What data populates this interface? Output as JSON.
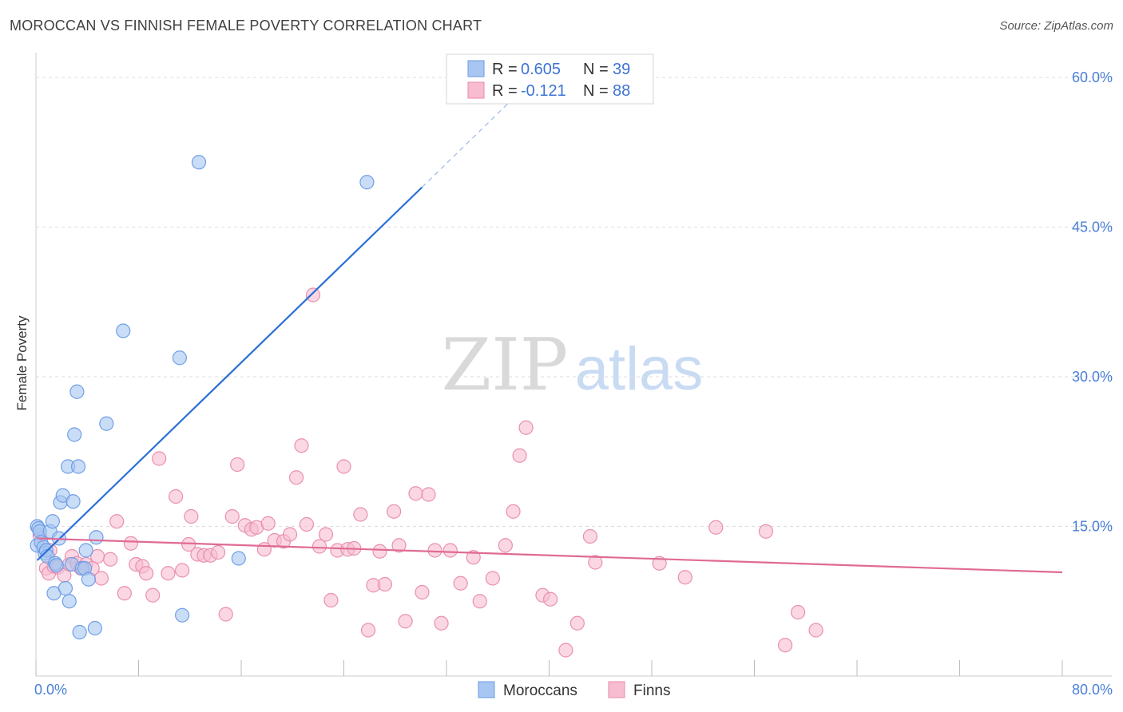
{
  "header": {
    "title": "MOROCCAN VS FINNISH FEMALE POVERTY CORRELATION CHART",
    "source": "Source: ZipAtlas.com"
  },
  "watermark": {
    "zip": "ZIP",
    "atlas": "atlas"
  },
  "legend_top": [
    {
      "r_label": "R =",
      "r_value": "0.605",
      "n_label": "N =",
      "n_value": "39",
      "color": "#a7c6f2",
      "stroke": "#6b9be0"
    },
    {
      "r_label": "R =",
      "r_value": "-0.121",
      "n_label": "N =",
      "n_value": "88",
      "color": "#f7bcd0",
      "stroke": "#e88aa8"
    }
  ],
  "legend_bottom": [
    {
      "label": "Moroccans",
      "color": "#a7c6f2",
      "stroke": "#6b9be0"
    },
    {
      "label": "Finns",
      "color": "#f7bcd0",
      "stroke": "#e88aa8"
    }
  ],
  "colors": {
    "blue_fill": "#a7c6f2",
    "blue_stroke": "#6f9ee6",
    "blue_line": "#2b6fd6",
    "pink_fill": "#f7bcd0",
    "pink_stroke": "#ea8fae",
    "pink_line": "#e06a95",
    "tick_text": "#4a7fd6",
    "grid": "#dddddd"
  },
  "chart_data": {
    "type": "scatter",
    "title": "MOROCCAN VS FINNISH FEMALE POVERTY CORRELATION CHART",
    "xlabel": "",
    "ylabel": "Female Poverty",
    "xlim": [
      0,
      80
    ],
    "ylim": [
      0,
      60
    ],
    "x_tick_labels": [
      {
        "value": 0,
        "label": "0.0%"
      },
      {
        "value": 80,
        "label": "80.0%"
      }
    ],
    "y_tick_labels": [
      {
        "value": 15,
        "label": "15.0%"
      },
      {
        "value": 30,
        "label": "30.0%"
      },
      {
        "value": 45,
        "label": "45.0%"
      },
      {
        "value": 60,
        "label": "60.0%"
      }
    ],
    "x_minor_ticks": [
      0,
      8,
      16,
      24,
      32,
      40,
      48,
      56,
      64,
      72,
      80
    ],
    "grid": true,
    "legend_position": "top-center",
    "series": [
      {
        "name": "Moroccans",
        "r": 0.605,
        "n": 39,
        "trend": {
          "x0": 0.1,
          "y0": 11.6,
          "x1": 30.1,
          "y1": 49.0,
          "dash_to_x": 38.0,
          "dash_to_y": 58.9
        },
        "points": [
          [
            0.1,
            13.1
          ],
          [
            0.1,
            15.0
          ],
          [
            0.2,
            14.8
          ],
          [
            0.3,
            14.5
          ],
          [
            0.4,
            13.4
          ],
          [
            0.6,
            12.9
          ],
          [
            0.7,
            12.3
          ],
          [
            0.8,
            12.6
          ],
          [
            0.9,
            12.0
          ],
          [
            1.1,
            14.5
          ],
          [
            1.3,
            15.5
          ],
          [
            1.4,
            8.3
          ],
          [
            1.5,
            11.3
          ],
          [
            1.6,
            11.1
          ],
          [
            1.8,
            13.8
          ],
          [
            1.9,
            17.4
          ],
          [
            2.1,
            18.1
          ],
          [
            2.3,
            8.8
          ],
          [
            2.5,
            21.0
          ],
          [
            2.6,
            7.5
          ],
          [
            2.8,
            11.2
          ],
          [
            2.9,
            17.5
          ],
          [
            3.0,
            24.2
          ],
          [
            3.2,
            28.5
          ],
          [
            3.3,
            21.0
          ],
          [
            3.4,
            4.4
          ],
          [
            3.6,
            10.8
          ],
          [
            3.8,
            10.8
          ],
          [
            3.9,
            12.6
          ],
          [
            4.1,
            9.7
          ],
          [
            4.6,
            4.8
          ],
          [
            4.7,
            13.9
          ],
          [
            5.5,
            25.3
          ],
          [
            6.8,
            34.6
          ],
          [
            11.2,
            31.9
          ],
          [
            11.4,
            6.1
          ],
          [
            12.7,
            51.5
          ],
          [
            15.8,
            11.8
          ],
          [
            25.8,
            49.5
          ]
        ]
      },
      {
        "name": "Finns",
        "r": -0.121,
        "n": 88,
        "trend": {
          "x0": 0.1,
          "y0": 13.8,
          "x1": 80.0,
          "y1": 10.4
        },
        "points": [
          [
            0.3,
            14.1
          ],
          [
            0.8,
            10.8
          ],
          [
            1.0,
            10.3
          ],
          [
            1.1,
            12.6
          ],
          [
            1.4,
            11.0
          ],
          [
            1.7,
            10.9
          ],
          [
            2.2,
            10.1
          ],
          [
            2.6,
            11.2
          ],
          [
            2.8,
            12.0
          ],
          [
            3.2,
            11.3
          ],
          [
            3.5,
            10.8
          ],
          [
            3.9,
            11.2
          ],
          [
            4.4,
            10.8
          ],
          [
            4.8,
            12.0
          ],
          [
            5.1,
            9.8
          ],
          [
            5.8,
            11.7
          ],
          [
            6.3,
            15.5
          ],
          [
            6.9,
            8.3
          ],
          [
            7.4,
            13.3
          ],
          [
            7.8,
            11.2
          ],
          [
            8.3,
            11.0
          ],
          [
            8.6,
            10.3
          ],
          [
            9.1,
            8.1
          ],
          [
            9.6,
            21.8
          ],
          [
            10.3,
            10.3
          ],
          [
            10.9,
            18.0
          ],
          [
            11.4,
            10.6
          ],
          [
            11.9,
            13.2
          ],
          [
            12.1,
            16.0
          ],
          [
            12.6,
            12.2
          ],
          [
            13.1,
            12.1
          ],
          [
            13.6,
            12.1
          ],
          [
            14.2,
            12.4
          ],
          [
            14.8,
            6.2
          ],
          [
            15.3,
            16.0
          ],
          [
            15.7,
            21.2
          ],
          [
            16.3,
            15.1
          ],
          [
            16.8,
            14.7
          ],
          [
            17.2,
            14.9
          ],
          [
            17.8,
            12.7
          ],
          [
            18.1,
            15.3
          ],
          [
            18.6,
            13.6
          ],
          [
            19.3,
            13.5
          ],
          [
            19.8,
            14.2
          ],
          [
            20.3,
            19.9
          ],
          [
            20.7,
            23.1
          ],
          [
            21.1,
            15.2
          ],
          [
            21.6,
            38.2
          ],
          [
            22.1,
            13.0
          ],
          [
            22.6,
            14.2
          ],
          [
            23.0,
            7.6
          ],
          [
            23.5,
            12.6
          ],
          [
            24.0,
            21.0
          ],
          [
            24.3,
            12.7
          ],
          [
            24.8,
            12.8
          ],
          [
            25.3,
            16.2
          ],
          [
            25.9,
            4.6
          ],
          [
            26.3,
            9.1
          ],
          [
            26.8,
            12.5
          ],
          [
            27.2,
            9.2
          ],
          [
            27.9,
            16.5
          ],
          [
            28.3,
            13.1
          ],
          [
            28.8,
            5.5
          ],
          [
            29.6,
            18.3
          ],
          [
            30.1,
            8.4
          ],
          [
            30.6,
            18.2
          ],
          [
            31.1,
            12.6
          ],
          [
            31.6,
            5.3
          ],
          [
            32.3,
            12.6
          ],
          [
            33.1,
            9.3
          ],
          [
            34.1,
            11.9
          ],
          [
            34.6,
            7.5
          ],
          [
            35.6,
            9.8
          ],
          [
            36.6,
            13.1
          ],
          [
            37.2,
            16.5
          ],
          [
            37.7,
            22.1
          ],
          [
            38.2,
            24.9
          ],
          [
            39.5,
            8.1
          ],
          [
            40.1,
            7.7
          ],
          [
            41.3,
            2.6
          ],
          [
            42.2,
            5.3
          ],
          [
            43.6,
            11.4
          ],
          [
            43.2,
            14.0
          ],
          [
            48.6,
            11.3
          ],
          [
            50.6,
            9.9
          ],
          [
            53.0,
            14.9
          ],
          [
            56.9,
            14.5
          ],
          [
            58.4,
            3.1
          ],
          [
            59.4,
            6.4
          ],
          [
            60.8,
            4.6
          ]
        ]
      }
    ]
  }
}
